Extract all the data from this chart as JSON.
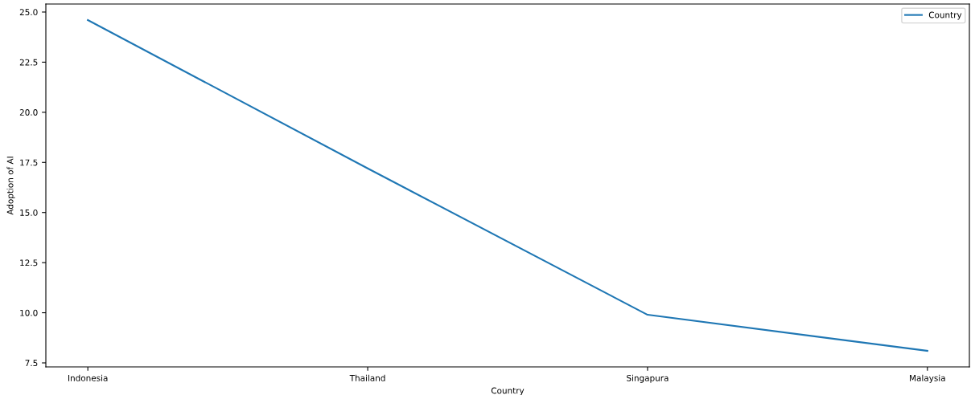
{
  "chart_data": {
    "type": "line",
    "xlabel": "Country",
    "ylabel": "Adoption of AI",
    "categories": [
      "Indonesia",
      "Thailand",
      "Singapura",
      "Malaysia"
    ],
    "series": [
      {
        "name": "Country",
        "color": "#1f77b4",
        "values": [
          24.6,
          17.2,
          9.9,
          8.1
        ]
      }
    ],
    "ylim": [
      7.3,
      25.4
    ],
    "yticks": [
      {
        "value": 7.5,
        "label": "7.5"
      },
      {
        "value": 10,
        "label": "10.0"
      },
      {
        "value": 12.5,
        "label": "12.5"
      },
      {
        "value": 15,
        "label": "15.0"
      },
      {
        "value": 17.5,
        "label": "17.5"
      },
      {
        "value": 20,
        "label": "20.0"
      },
      {
        "value": 22.5,
        "label": "22.5"
      },
      {
        "value": 25,
        "label": "25.0"
      }
    ],
    "legend": "top right",
    "grid": false,
    "marker": "none",
    "line_style": "solid"
  }
}
